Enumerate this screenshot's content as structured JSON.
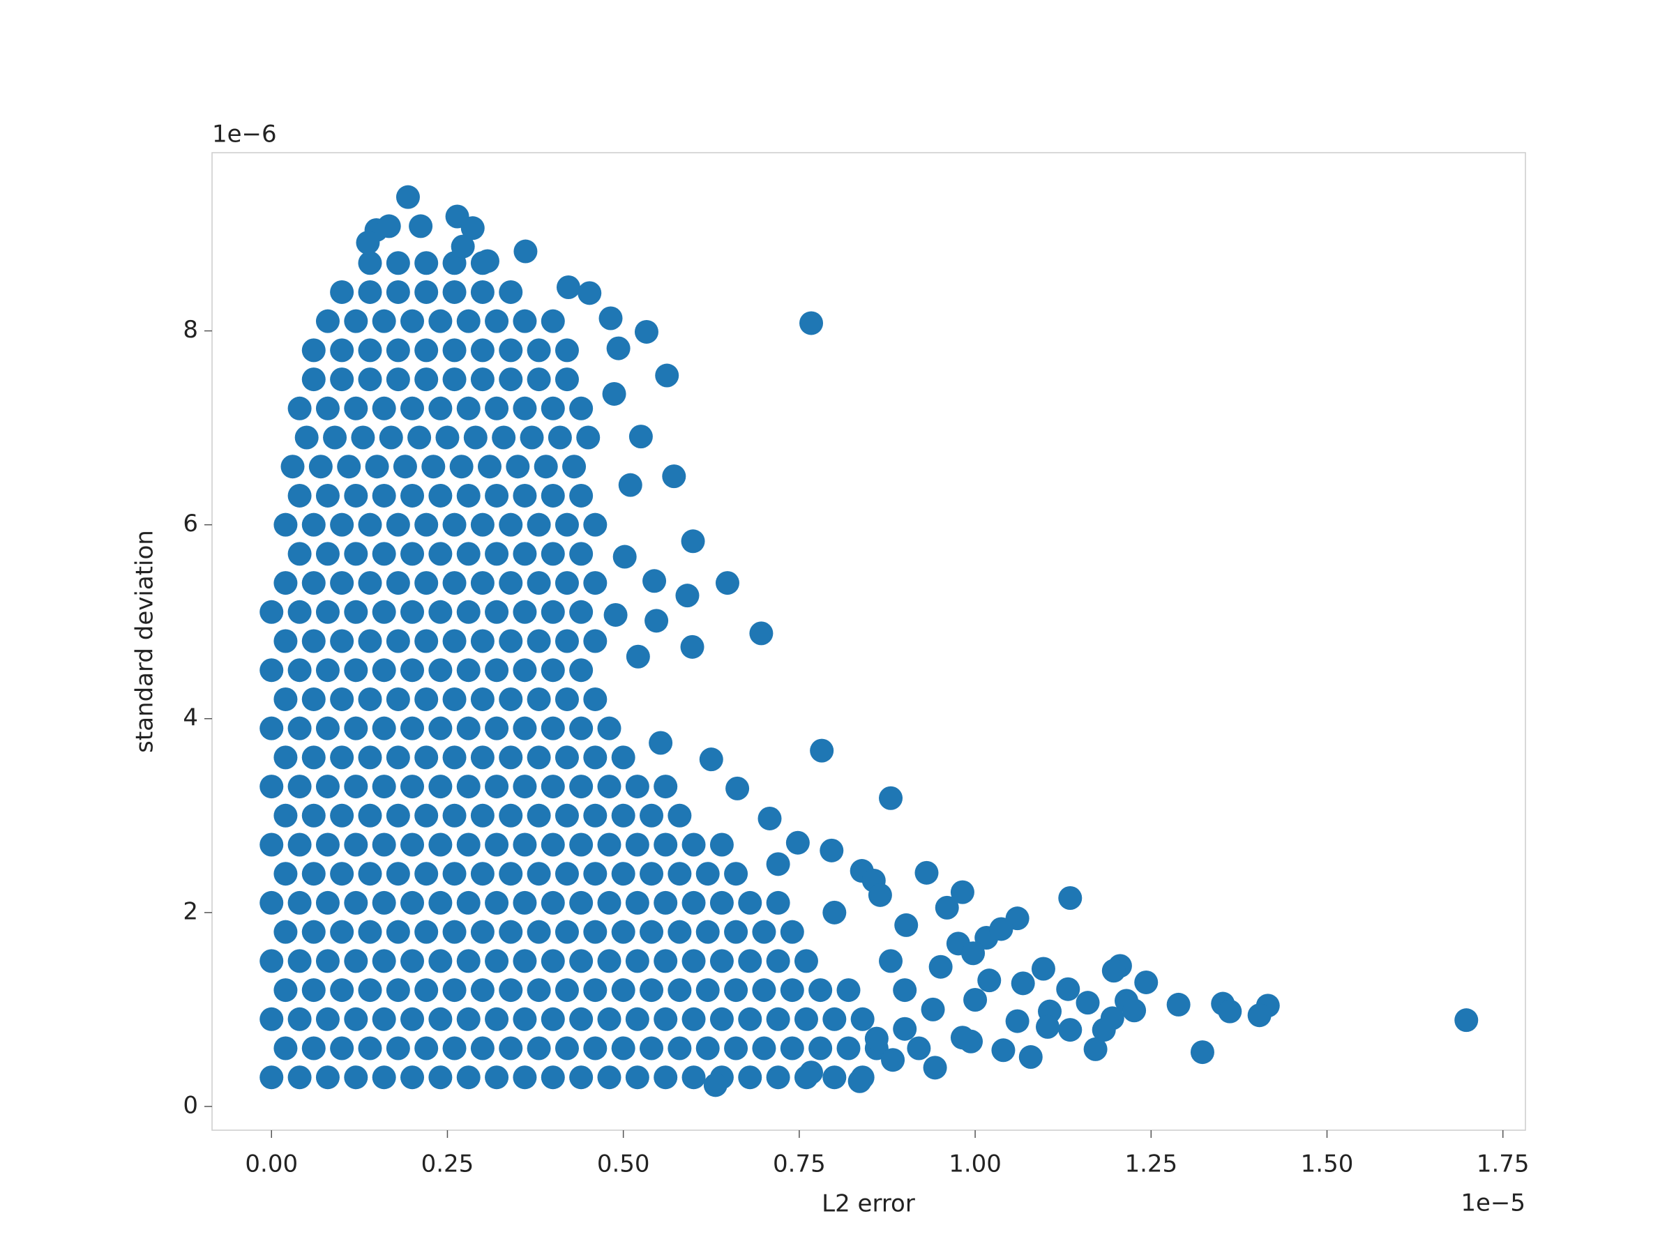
{
  "chart_data": {
    "type": "scatter",
    "xlabel": "L2 error",
    "ylabel": "standard deviation",
    "x_offset_label": "1e−5",
    "y_offset_label": "1e−6",
    "color": "#1f77b4",
    "xlim": [
      -0.0845,
      1.782
    ],
    "ylim": [
      -0.245,
      9.838
    ],
    "xticks": [
      {
        "value": 0,
        "label": "0.00"
      },
      0.25,
      {
        "value": 0.5,
        "label": "0.50"
      },
      0.75,
      {
        "value": 1,
        "label": "1.00"
      },
      1.25,
      {
        "value": 1.5,
        "label": "1.50"
      },
      1.75
    ],
    "yticks": [
      0,
      2,
      4,
      6,
      8
    ],
    "x": [
      0,
      0.04,
      0.08,
      0.12,
      0.16,
      0.2,
      0.24,
      0.28,
      0.32,
      0.36,
      0.4,
      0.44,
      0.48,
      0.52,
      0.56,
      0.6,
      0.64,
      0.68,
      0.72,
      0.76,
      0.8,
      0.84,
      0.02,
      0.06,
      0.1,
      0.14,
      0.18,
      0.22,
      0.26,
      0.3,
      0.34,
      0.38,
      0.42,
      0.46,
      0.5,
      0.54,
      0.58,
      0.62,
      0.66,
      0.7,
      0.74,
      0.78,
      0.82,
      0.86,
      0,
      0.04,
      0.08,
      0.12,
      0.16,
      0.2,
      0.24,
      0.28,
      0.32,
      0.36,
      0.4,
      0.44,
      0.48,
      0.52,
      0.56,
      0.6,
      0.64,
      0.68,
      0.72,
      0.76,
      0.8,
      0.84,
      0.02,
      0.06,
      0.1,
      0.14,
      0.18,
      0.22,
      0.26,
      0.3,
      0.34,
      0.38,
      0.42,
      0.46,
      0.5,
      0.54,
      0.58,
      0.62,
      0.66,
      0.7,
      0.74,
      0.78,
      0.82,
      0,
      0.04,
      0.08,
      0.12,
      0.16,
      0.2,
      0.24,
      0.28,
      0.32,
      0.36,
      0.4,
      0.44,
      0.48,
      0.52,
      0.56,
      0.6,
      0.64,
      0.68,
      0.72,
      0.76,
      0.02,
      0.06,
      0.1,
      0.14,
      0.18,
      0.22,
      0.26,
      0.3,
      0.34,
      0.38,
      0.42,
      0.46,
      0.5,
      0.54,
      0.58,
      0.62,
      0.66,
      0.7,
      0.74,
      0,
      0.04,
      0.08,
      0.12,
      0.16,
      0.2,
      0.24,
      0.28,
      0.32,
      0.36,
      0.4,
      0.44,
      0.48,
      0.52,
      0.56,
      0.6,
      0.64,
      0.68,
      0.72,
      0.02,
      0.06,
      0.1,
      0.14,
      0.18,
      0.22,
      0.26,
      0.3,
      0.34,
      0.38,
      0.42,
      0.46,
      0.5,
      0.54,
      0.58,
      0.62,
      0.66,
      0,
      0.04,
      0.08,
      0.12,
      0.16,
      0.2,
      0.24,
      0.28,
      0.32,
      0.36,
      0.4,
      0.44,
      0.48,
      0.52,
      0.56,
      0.6,
      0.64,
      0.02,
      0.06,
      0.1,
      0.14,
      0.18,
      0.22,
      0.26,
      0.3,
      0.34,
      0.38,
      0.42,
      0.46,
      0.5,
      0.54,
      0.58,
      0,
      0.04,
      0.08,
      0.12,
      0.16,
      0.2,
      0.24,
      0.28,
      0.32,
      0.36,
      0.4,
      0.44,
      0.48,
      0.52,
      0.56,
      0.02,
      0.06,
      0.1,
      0.14,
      0.18,
      0.22,
      0.26,
      0.3,
      0.34,
      0.38,
      0.42,
      0.46,
      0.5,
      0,
      0.04,
      0.08,
      0.12,
      0.16,
      0.2,
      0.24,
      0.28,
      0.32,
      0.36,
      0.4,
      0.44,
      0.48,
      0.02,
      0.06,
      0.1,
      0.14,
      0.18,
      0.22,
      0.26,
      0.3,
      0.34,
      0.38,
      0.42,
      0.46,
      0,
      0.04,
      0.08,
      0.12,
      0.16,
      0.2,
      0.24,
      0.28,
      0.32,
      0.36,
      0.4,
      0.44,
      0.02,
      0.06,
      0.1,
      0.14,
      0.18,
      0.22,
      0.26,
      0.3,
      0.34,
      0.38,
      0.42,
      0.46,
      0,
      0.04,
      0.08,
      0.12,
      0.16,
      0.2,
      0.24,
      0.28,
      0.32,
      0.36,
      0.4,
      0.44,
      0.02,
      0.06,
      0.1,
      0.14,
      0.18,
      0.22,
      0.26,
      0.3,
      0.34,
      0.38,
      0.42,
      0.46,
      0.04,
      0.08,
      0.12,
      0.16,
      0.2,
      0.24,
      0.28,
      0.32,
      0.36,
      0.4,
      0.44,
      0.02,
      0.06,
      0.1,
      0.14,
      0.18,
      0.22,
      0.26,
      0.3,
      0.34,
      0.38,
      0.42,
      0.46,
      0.04,
      0.08,
      0.12,
      0.16,
      0.2,
      0.24,
      0.28,
      0.32,
      0.36,
      0.4,
      0.44,
      0.03,
      0.07,
      0.11,
      0.15,
      0.19,
      0.23,
      0.27,
      0.31,
      0.35,
      0.39,
      0.43,
      0.05,
      0.09,
      0.13,
      0.17,
      0.21,
      0.25,
      0.29,
      0.33,
      0.37,
      0.41,
      0.45,
      0.04,
      0.08,
      0.12,
      0.16,
      0.2,
      0.24,
      0.28,
      0.32,
      0.36,
      0.4,
      0.44,
      0.06,
      0.1,
      0.14,
      0.18,
      0.22,
      0.26,
      0.3,
      0.34,
      0.38,
      0.42,
      0.06,
      0.1,
      0.14,
      0.18,
      0.22,
      0.26,
      0.3,
      0.34,
      0.38,
      0.42,
      0.08,
      0.12,
      0.16,
      0.2,
      0.24,
      0.28,
      0.32,
      0.36,
      0.4,
      0.1,
      0.14,
      0.18,
      0.22,
      0.26,
      0.3,
      0.34,
      0.14,
      0.18,
      0.22,
      0.26,
      0.3,
      0.194,
      0.264,
      0.286,
      0.361,
      0.452,
      0.422,
      0.482,
      0.533,
      0.767,
      0.493,
      0.562,
      0.487,
      0.525,
      0.572,
      0.51,
      0.599,
      0.648,
      0.544,
      0.591,
      0.502,
      0.696,
      0.547,
      0.598,
      0.521,
      0.489,
      0.625,
      0.782,
      0.553,
      0.88,
      0.662,
      0.708,
      0.748,
      0.796,
      0.839,
      0.931,
      0.982,
      1.135,
      1.06,
      0.96,
      0.902,
      0.976,
      1.016,
      1.037,
      1.206,
      1.197,
      1.243,
      1.097,
      1.132,
      1.16,
      1.215,
      1.289,
      1.352,
      1.362,
      1.416,
      1.404,
      1.698,
      1.226,
      1.195,
      1.183,
      1.171,
      1.135,
      1.106,
      1.103,
      1.079,
      1.04,
      1.323,
      0.943,
      0.994,
      0.982,
      1.06,
      0.836,
      0.767,
      0.883,
      0.631,
      1.068,
      0.997,
      0.951,
      0.856,
      0.865,
      0.149,
      0.167,
      0.212,
      0.137,
      0.307,
      0.272,
      0.9,
      0.94,
      0.9,
      0.88,
      1.0,
      1.02,
      0.86,
      0.92,
      0.8,
      0.72
    ],
    "y": [
      0.3,
      0.3,
      0.3,
      0.3,
      0.3,
      0.3,
      0.3,
      0.3,
      0.3,
      0.3,
      0.3,
      0.3,
      0.3,
      0.3,
      0.3,
      0.3,
      0.3,
      0.3,
      0.3,
      0.3,
      0.3,
      0.3,
      0.6,
      0.6,
      0.6,
      0.6,
      0.6,
      0.6,
      0.6,
      0.6,
      0.6,
      0.6,
      0.6,
      0.6,
      0.6,
      0.6,
      0.6,
      0.6,
      0.6,
      0.6,
      0.6,
      0.6,
      0.6,
      0.6,
      0.9,
      0.9,
      0.9,
      0.9,
      0.9,
      0.9,
      0.9,
      0.9,
      0.9,
      0.9,
      0.9,
      0.9,
      0.9,
      0.9,
      0.9,
      0.9,
      0.9,
      0.9,
      0.9,
      0.9,
      0.9,
      0.9,
      1.2,
      1.2,
      1.2,
      1.2,
      1.2,
      1.2,
      1.2,
      1.2,
      1.2,
      1.2,
      1.2,
      1.2,
      1.2,
      1.2,
      1.2,
      1.2,
      1.2,
      1.2,
      1.2,
      1.2,
      1.2,
      1.5,
      1.5,
      1.5,
      1.5,
      1.5,
      1.5,
      1.5,
      1.5,
      1.5,
      1.5,
      1.5,
      1.5,
      1.5,
      1.5,
      1.5,
      1.5,
      1.5,
      1.5,
      1.5,
      1.5,
      1.8,
      1.8,
      1.8,
      1.8,
      1.8,
      1.8,
      1.8,
      1.8,
      1.8,
      1.8,
      1.8,
      1.8,
      1.8,
      1.8,
      1.8,
      1.8,
      1.8,
      1.8,
      1.8,
      2.1,
      2.1,
      2.1,
      2.1,
      2.1,
      2.1,
      2.1,
      2.1,
      2.1,
      2.1,
      2.1,
      2.1,
      2.1,
      2.1,
      2.1,
      2.1,
      2.1,
      2.1,
      2.1,
      2.4,
      2.4,
      2.4,
      2.4,
      2.4,
      2.4,
      2.4,
      2.4,
      2.4,
      2.4,
      2.4,
      2.4,
      2.4,
      2.4,
      2.4,
      2.4,
      2.4,
      2.7,
      2.7,
      2.7,
      2.7,
      2.7,
      2.7,
      2.7,
      2.7,
      2.7,
      2.7,
      2.7,
      2.7,
      2.7,
      2.7,
      2.7,
      2.7,
      2.7,
      3.0,
      3.0,
      3.0,
      3.0,
      3.0,
      3.0,
      3.0,
      3.0,
      3.0,
      3.0,
      3.0,
      3.0,
      3.0,
      3.0,
      3.0,
      3.3,
      3.3,
      3.3,
      3.3,
      3.3,
      3.3,
      3.3,
      3.3,
      3.3,
      3.3,
      3.3,
      3.3,
      3.3,
      3.3,
      3.3,
      3.6,
      3.6,
      3.6,
      3.6,
      3.6,
      3.6,
      3.6,
      3.6,
      3.6,
      3.6,
      3.6,
      3.6,
      3.6,
      3.9,
      3.9,
      3.9,
      3.9,
      3.9,
      3.9,
      3.9,
      3.9,
      3.9,
      3.9,
      3.9,
      3.9,
      3.9,
      4.2,
      4.2,
      4.2,
      4.2,
      4.2,
      4.2,
      4.2,
      4.2,
      4.2,
      4.2,
      4.2,
      4.2,
      4.5,
      4.5,
      4.5,
      4.5,
      4.5,
      4.5,
      4.5,
      4.5,
      4.5,
      4.5,
      4.5,
      4.5,
      4.8,
      4.8,
      4.8,
      4.8,
      4.8,
      4.8,
      4.8,
      4.8,
      4.8,
      4.8,
      4.8,
      4.8,
      5.1,
      5.1,
      5.1,
      5.1,
      5.1,
      5.1,
      5.1,
      5.1,
      5.1,
      5.1,
      5.1,
      5.1,
      5.4,
      5.4,
      5.4,
      5.4,
      5.4,
      5.4,
      5.4,
      5.4,
      5.4,
      5.4,
      5.4,
      5.4,
      5.7,
      5.7,
      5.7,
      5.7,
      5.7,
      5.7,
      5.7,
      5.7,
      5.7,
      5.7,
      5.7,
      6.0,
      6.0,
      6.0,
      6.0,
      6.0,
      6.0,
      6.0,
      6.0,
      6.0,
      6.0,
      6.0,
      6.0,
      6.3,
      6.3,
      6.3,
      6.3,
      6.3,
      6.3,
      6.3,
      6.3,
      6.3,
      6.3,
      6.3,
      6.6,
      6.6,
      6.6,
      6.6,
      6.6,
      6.6,
      6.6,
      6.6,
      6.6,
      6.6,
      6.6,
      6.9,
      6.9,
      6.9,
      6.9,
      6.9,
      6.9,
      6.9,
      6.9,
      6.9,
      6.9,
      6.9,
      7.2,
      7.2,
      7.2,
      7.2,
      7.2,
      7.2,
      7.2,
      7.2,
      7.2,
      7.2,
      7.2,
      7.5,
      7.5,
      7.5,
      7.5,
      7.5,
      7.5,
      7.5,
      7.5,
      7.5,
      7.5,
      7.8,
      7.8,
      7.8,
      7.8,
      7.8,
      7.8,
      7.8,
      7.8,
      7.8,
      7.8,
      8.1,
      8.1,
      8.1,
      8.1,
      8.1,
      8.1,
      8.1,
      8.1,
      8.1,
      8.4,
      8.4,
      8.4,
      8.4,
      8.4,
      8.4,
      8.4,
      8.7,
      8.7,
      8.7,
      8.7,
      8.7,
      9.38,
      9.18,
      9.06,
      8.82,
      8.39,
      8.45,
      8.13,
      7.99,
      8.08,
      7.82,
      7.54,
      7.35,
      6.91,
      6.5,
      6.41,
      5.83,
      5.4,
      5.42,
      5.27,
      5.67,
      4.88,
      5.01,
      4.74,
      4.64,
      5.07,
      3.58,
      3.67,
      3.75,
      3.18,
      3.28,
      2.97,
      2.72,
      2.64,
      2.43,
      2.41,
      2.21,
      2.15,
      1.94,
      2.05,
      1.87,
      1.68,
      1.74,
      1.83,
      1.45,
      1.4,
      1.28,
      1.42,
      1.21,
      1.07,
      1.09,
      1.05,
      1.06,
      0.98,
      1.04,
      0.94,
      0.89,
      0.99,
      0.91,
      0.79,
      0.59,
      0.79,
      0.98,
      0.82,
      0.51,
      0.58,
      0.56,
      0.4,
      0.67,
      0.71,
      0.88,
      0.26,
      0.35,
      0.48,
      0.22,
      1.27,
      1.58,
      1.44,
      2.33,
      2.18,
      9.04,
      9.08,
      9.08,
      8.91,
      8.72,
      8.87,
      1.2,
      1.0,
      0.8,
      1.5,
      1.1,
      1.3,
      0.7,
      0.6,
      2.0,
      2.5
    ]
  }
}
